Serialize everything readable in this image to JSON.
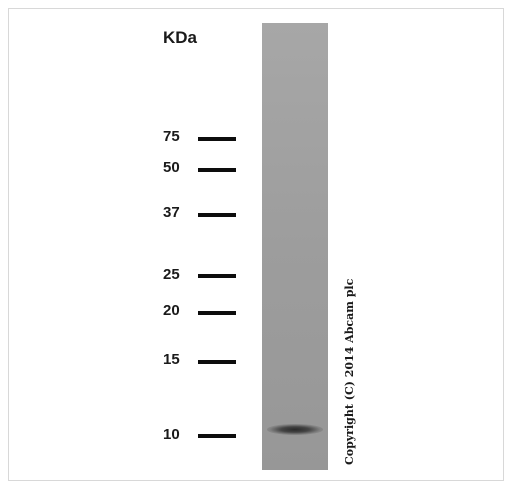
{
  "unit_label": "KDa",
  "markers": [
    {
      "label": "75"
    },
    {
      "label": "50"
    },
    {
      "label": "37"
    },
    {
      "label": "25"
    },
    {
      "label": "20"
    },
    {
      "label": "15"
    },
    {
      "label": "10"
    }
  ],
  "copyright": "Copyright (C) 2014 Abcam plc",
  "colors": {
    "lane": "#a0a0a0",
    "band": "#2a2a2a",
    "tick": "#0d0d0d"
  }
}
